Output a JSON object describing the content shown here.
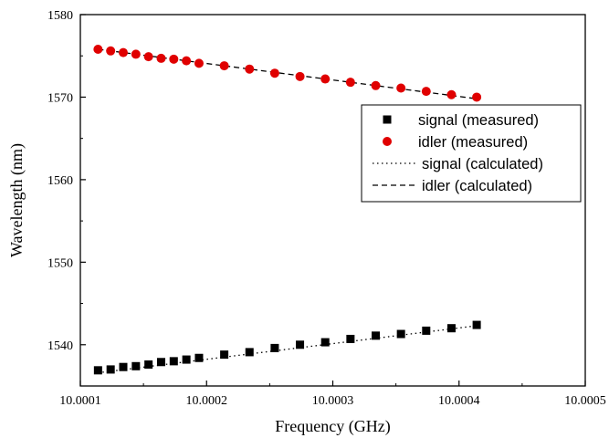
{
  "chart_data": {
    "type": "scatter",
    "xlabel": "Frequency (GHz)",
    "ylabel": "Wavelength (nm)",
    "xlim": [
      10.0001,
      10.0005
    ],
    "ylim": [
      1535,
      1580
    ],
    "xticks": [
      "10.0001",
      "10.0002",
      "10.0003",
      "10.0004",
      "10.0005"
    ],
    "yticks": [
      "1540",
      "1550",
      "1560",
      "1570",
      "1580"
    ],
    "xtick_values": [
      10.0001,
      10.0002,
      10.0003,
      10.0004,
      10.0005
    ],
    "ytick_values": [
      1540,
      1550,
      1560,
      1570,
      1580
    ],
    "grid": false,
    "legend_position": "right",
    "series": [
      {
        "name": "signal (measured)",
        "kind": "markers",
        "marker": "square",
        "color": "#000000",
        "x": [
          10.000114,
          10.000124,
          10.000134,
          10.000144,
          10.000154,
          10.000164,
          10.000174,
          10.000184,
          10.000194,
          10.000214,
          10.000234,
          10.000254,
          10.000274,
          10.000294,
          10.000314,
          10.000334,
          10.000354,
          10.000374,
          10.000394,
          10.000414
        ],
        "y": [
          1536.9,
          1537.0,
          1537.3,
          1537.4,
          1537.6,
          1537.9,
          1538.0,
          1538.2,
          1538.4,
          1538.8,
          1539.1,
          1539.6,
          1540.0,
          1540.3,
          1540.7,
          1541.1,
          1541.3,
          1541.7,
          1542.0,
          1542.4
        ]
      },
      {
        "name": "idler (measured)",
        "kind": "markers",
        "marker": "circle",
        "color": "#e00000",
        "x": [
          10.000114,
          10.000124,
          10.000134,
          10.000144,
          10.000154,
          10.000164,
          10.000174,
          10.000184,
          10.000194,
          10.000214,
          10.000234,
          10.000254,
          10.000274,
          10.000294,
          10.000314,
          10.000334,
          10.000354,
          10.000374,
          10.000394,
          10.000414
        ],
        "y": [
          1575.8,
          1575.6,
          1575.4,
          1575.2,
          1574.9,
          1574.7,
          1574.6,
          1574.4,
          1574.1,
          1573.8,
          1573.4,
          1572.9,
          1572.5,
          1572.2,
          1571.8,
          1571.4,
          1571.1,
          1570.7,
          1570.3,
          1570.0
        ]
      },
      {
        "name": "signal (calculated)",
        "kind": "line",
        "dash": "dotted",
        "color": "#000000",
        "x": [
          10.000114,
          10.000414
        ],
        "y": [
          1536.6,
          1542.3
        ]
      },
      {
        "name": "idler (calculated)",
        "kind": "line",
        "dash": "dashed",
        "color": "#000000",
        "x": [
          10.000114,
          10.000414
        ],
        "y": [
          1575.8,
          1569.8
        ]
      }
    ]
  }
}
